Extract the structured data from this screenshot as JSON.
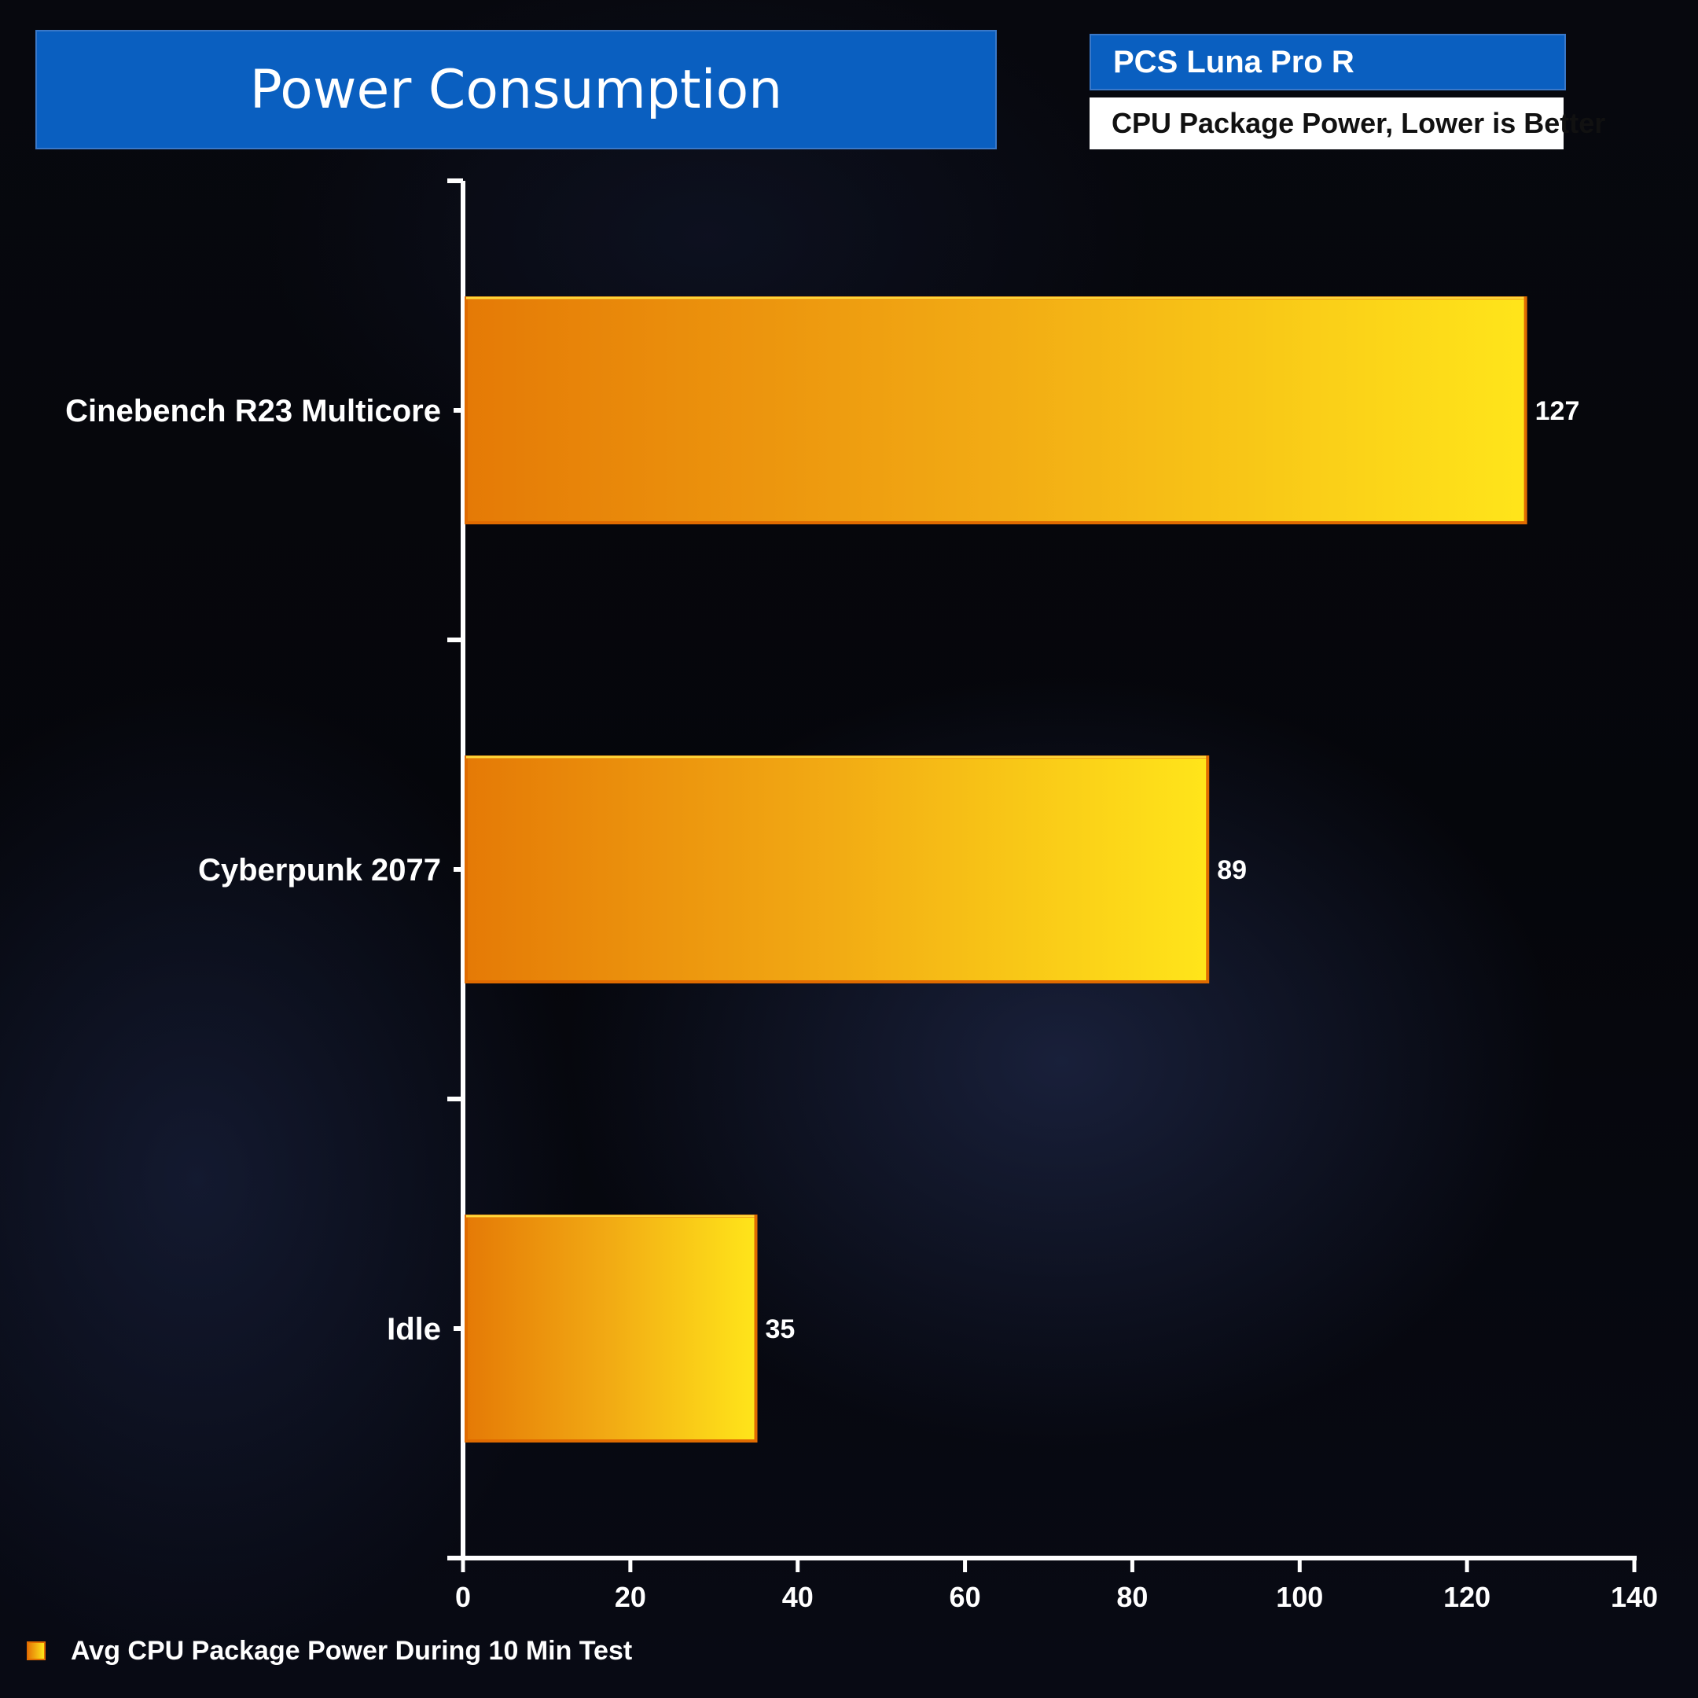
{
  "header": {
    "title": "Power Consumption",
    "product": "PCS Luna Pro R",
    "subtitle": "CPU Package Power, Lower is Better"
  },
  "legend": {
    "label": "Avg CPU Package Power During 10 Min Test"
  },
  "colors": {
    "title_bg": "#0a5fc0",
    "bar_start": "#e57a06",
    "bar_end": "#ffe51a",
    "bar_border": "#e06b00"
  },
  "chart_data": {
    "type": "bar",
    "orientation": "horizontal",
    "categories": [
      "Cinebench R23 Multicore",
      "Cyberpunk 2077",
      "Idle"
    ],
    "series": [
      {
        "name": "Avg CPU Package Power During 10 Min Test",
        "values": [
          127,
          89,
          35
        ]
      }
    ],
    "xlim": [
      0,
      140
    ],
    "xticks": [
      0,
      20,
      40,
      60,
      80,
      100,
      120,
      140
    ],
    "grid": false,
    "legend_position": "bottom-left"
  }
}
